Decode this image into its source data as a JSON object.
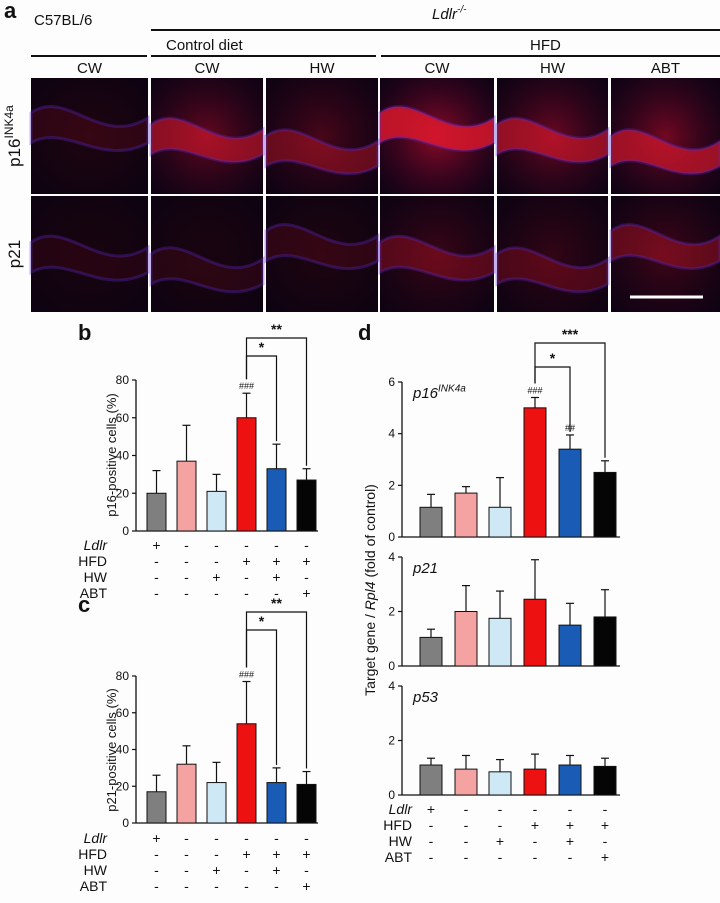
{
  "panels": {
    "a": "a",
    "b": "b",
    "c": "c",
    "d": "d"
  },
  "headers": {
    "strain_wt": "C57BL/6",
    "strain_ko": "Ldlr",
    "strain_ko_sup": "-/-",
    "diet_control": "Control diet",
    "diet_hfd": "HFD",
    "columns": [
      "CW",
      "CW",
      "HW",
      "CW",
      "HW",
      "ABT"
    ],
    "rows": [
      {
        "main": "p16",
        "sup": "INK4a"
      },
      {
        "main": "p21",
        "sup": ""
      }
    ]
  },
  "micrographs": {
    "p16_intensity": [
      0.15,
      0.65,
      0.45,
      0.95,
      0.7,
      0.75
    ],
    "p21_intensity": [
      0.1,
      0.12,
      0.15,
      0.35,
      0.3,
      0.4
    ]
  },
  "condition_table": {
    "rows": [
      {
        "label": "Ldlr",
        "italic": true,
        "marks": [
          "+",
          "-",
          "-",
          "-",
          "-",
          "-"
        ]
      },
      {
        "label": "HFD",
        "italic": false,
        "marks": [
          "-",
          "-",
          "-",
          "+",
          "+",
          "+"
        ]
      },
      {
        "label": "HW",
        "italic": false,
        "marks": [
          "-",
          "-",
          "+",
          "-",
          "+",
          "-"
        ]
      },
      {
        "label": "ABT",
        "italic": false,
        "marks": [
          "-",
          "-",
          "-",
          "-",
          "-",
          "+"
        ]
      }
    ]
  },
  "colors": {
    "bars": [
      "#7f7f7f",
      "#f4a2a2",
      "#cfe8f6",
      "#ee1111",
      "#1a5bb5",
      "#050505"
    ]
  },
  "chart_data": [
    {
      "id": "b",
      "type": "bar",
      "ylabel": "p16-positive cells (%)",
      "ylim": [
        0,
        80
      ],
      "yticks": [
        0,
        20,
        40,
        60,
        80
      ],
      "values": [
        20,
        37,
        21,
        60,
        33,
        27
      ],
      "errors": [
        12,
        19,
        9,
        13,
        13,
        6
      ],
      "annotations": [
        {
          "bar": 3,
          "text": "###"
        }
      ],
      "brackets": [
        {
          "from": 3,
          "to": 4,
          "label": "*"
        },
        {
          "from": 3,
          "to": 5,
          "label": "**"
        }
      ]
    },
    {
      "id": "c",
      "type": "bar",
      "ylabel": "p21-positive cells (%)",
      "ylim": [
        0,
        80
      ],
      "yticks": [
        0,
        20,
        40,
        60,
        80
      ],
      "values": [
        17,
        32,
        22,
        54,
        22,
        21
      ],
      "errors": [
        9,
        10,
        11,
        23,
        8,
        7
      ],
      "annotations": [
        {
          "bar": 3,
          "text": "###"
        }
      ],
      "brackets": [
        {
          "from": 3,
          "to": 4,
          "label": "*"
        },
        {
          "from": 3,
          "to": 5,
          "label": "**"
        }
      ]
    },
    {
      "id": "d",
      "type": "bar",
      "ylabel": "Target gene / Rpl4 (fold of control)",
      "subplots": [
        {
          "label": "p16",
          "label_sup": "INK4a",
          "ylim": [
            0,
            6
          ],
          "yticks": [
            0,
            2,
            4,
            6
          ],
          "values": [
            1.15,
            1.7,
            1.15,
            5.0,
            3.4,
            2.5
          ],
          "errors": [
            0.5,
            0.25,
            1.15,
            0.4,
            0.55,
            0.45
          ],
          "annotations": [
            {
              "bar": 3,
              "text": "###"
            },
            {
              "bar": 4,
              "text": "##"
            }
          ],
          "brackets": [
            {
              "from": 3,
              "to": 4,
              "label": "*"
            },
            {
              "from": 3,
              "to": 5,
              "label": "***"
            }
          ]
        },
        {
          "label": "p21",
          "label_sup": "",
          "ylim": [
            0,
            4
          ],
          "yticks": [
            0,
            2,
            4
          ],
          "values": [
            1.05,
            2.0,
            1.75,
            2.45,
            1.5,
            1.8
          ],
          "errors": [
            0.3,
            0.95,
            1.0,
            1.45,
            0.8,
            1.0
          ],
          "annotations": [],
          "brackets": []
        },
        {
          "label": "p53",
          "label_sup": "",
          "ylim": [
            0,
            4
          ],
          "yticks": [
            0,
            2,
            4
          ],
          "values": [
            1.1,
            0.95,
            0.85,
            0.95,
            1.1,
            1.05
          ],
          "errors": [
            0.25,
            0.5,
            0.45,
            0.55,
            0.35,
            0.3
          ],
          "annotations": [],
          "brackets": []
        }
      ]
    }
  ]
}
